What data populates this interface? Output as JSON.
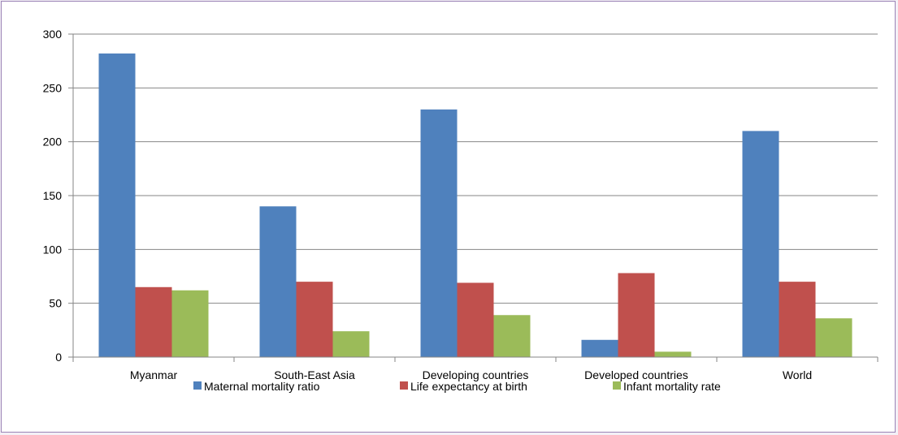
{
  "chart_data": {
    "type": "bar",
    "categories": [
      "Myanmar",
      "South-East Asia",
      "Developing countries",
      "Developed countries",
      "World"
    ],
    "series": [
      {
        "name": "Maternal mortality ratio",
        "values": [
          282,
          140,
          230,
          16,
          210
        ],
        "color": "#4f81bd"
      },
      {
        "name": "Life expectancy at birth",
        "values": [
          65,
          70,
          69,
          78,
          70
        ],
        "color": "#c0504d"
      },
      {
        "name": "Infant mortality rate",
        "values": [
          62,
          24,
          39,
          5,
          36
        ],
        "color": "#9bbb59"
      }
    ],
    "y_ticks": [
      "0",
      "50",
      "100",
      "150",
      "200",
      "250",
      "300"
    ],
    "ylim": [
      0,
      300
    ],
    "grid": true,
    "legend_position": "bottom"
  }
}
